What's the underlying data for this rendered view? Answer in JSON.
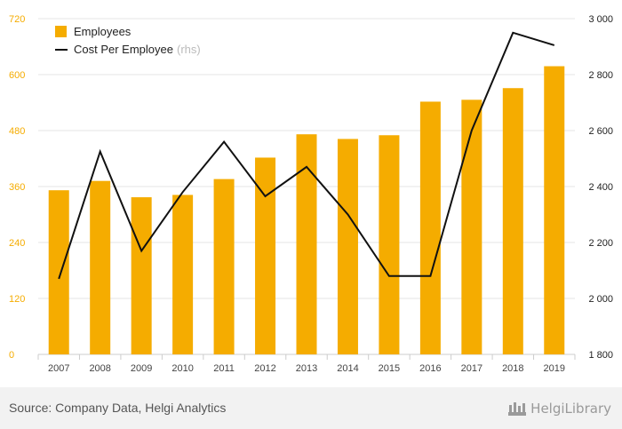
{
  "chart_data": {
    "type": "bar+line",
    "categories": [
      "2007",
      "2008",
      "2009",
      "2010",
      "2011",
      "2012",
      "2013",
      "2014",
      "2015",
      "2016",
      "2017",
      "2018",
      "2019"
    ],
    "series": [
      {
        "name": "Employees",
        "type": "bar",
        "axis": "left",
        "color": "#f5ac00",
        "values": [
          352,
          372,
          337,
          342,
          376,
          422,
          472,
          462,
          470,
          542,
          546,
          571,
          618
        ]
      },
      {
        "name": "Cost Per Employee",
        "name_suffix": "(rhs)",
        "type": "line",
        "axis": "right",
        "color": "#111111",
        "values": [
          2070,
          2525,
          2170,
          2380,
          2560,
          2365,
          2470,
          2300,
          2080,
          2080,
          2600,
          2950,
          2905
        ]
      }
    ],
    "left_axis": {
      "min": 0,
      "max": 720,
      "ticks": [
        "0",
        "120",
        "240",
        "360",
        "480",
        "600",
        "720"
      ],
      "color": "#f5ac00"
    },
    "right_axis": {
      "min": 1800,
      "max": 3000,
      "ticks": [
        "1 800",
        "2 000",
        "2 200",
        "2 400",
        "2 600",
        "2 800",
        "3 000"
      ],
      "color": "#222222"
    },
    "legend": {
      "position": "top-left"
    },
    "grid": true
  },
  "footer": {
    "source": "Source: Company Data, Helgi Analytics",
    "logo_text": "HelgiLibrary",
    "logo_icon": "helgi-library-icon"
  }
}
